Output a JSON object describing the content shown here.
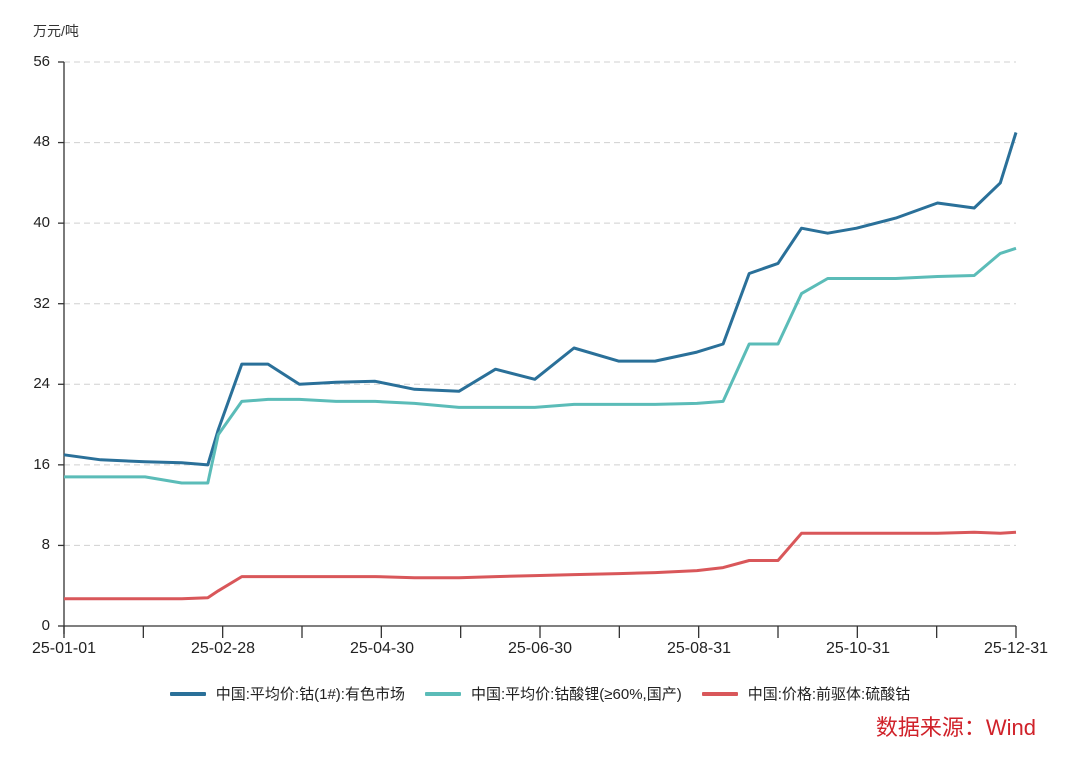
{
  "chart_data": {
    "type": "line",
    "title": "",
    "ylabel": "万元/吨",
    "xlabel": "",
    "ylim": [
      0,
      56
    ],
    "yticks": [
      0,
      8,
      16,
      24,
      32,
      40,
      48,
      56
    ],
    "xtick_labels": [
      "25-01-01",
      "25-02-28",
      "25-04-30",
      "25-06-30",
      "25-08-31",
      "25-10-31",
      "25-12-31"
    ],
    "grid": "horizontal dashed",
    "legend_position": "bottom",
    "x": [
      "25-01-01",
      "25-01-15",
      "25-02-01",
      "25-02-15",
      "25-02-25",
      "25-03-01",
      "25-03-10",
      "25-03-20",
      "25-04-01",
      "25-04-15",
      "25-04-30",
      "25-05-15",
      "25-06-01",
      "25-06-15",
      "25-06-30",
      "25-07-15",
      "25-08-01",
      "25-08-15",
      "25-08-31",
      "25-09-10",
      "25-09-20",
      "25-10-01",
      "25-10-10",
      "25-10-20",
      "25-10-31",
      "25-11-15",
      "25-12-01",
      "25-12-15",
      "25-12-25",
      "25-12-31"
    ],
    "series": [
      {
        "name": "中国:平均价:钴(1#):有色市场",
        "color": "#2a7099",
        "values": [
          17.0,
          16.5,
          16.3,
          16.2,
          16.0,
          19.5,
          26.0,
          26.0,
          24.0,
          24.2,
          24.3,
          23.5,
          23.3,
          25.5,
          24.5,
          27.6,
          26.3,
          26.3,
          27.2,
          28.0,
          35.0,
          36.0,
          39.5,
          39.0,
          39.5,
          40.5,
          42.0,
          41.5,
          44.0,
          49.0
        ]
      },
      {
        "name": "中国:平均价:钴酸锂(≥60%,国产)",
        "color": "#5bbcb8",
        "values": [
          14.8,
          14.8,
          14.8,
          14.2,
          14.2,
          19.0,
          22.3,
          22.5,
          22.5,
          22.3,
          22.3,
          22.1,
          21.7,
          21.7,
          21.7,
          22.0,
          22.0,
          22.0,
          22.1,
          22.3,
          28.0,
          28.0,
          33.0,
          34.5,
          34.5,
          34.5,
          34.7,
          34.8,
          37.0,
          37.5
        ]
      },
      {
        "name": "中国:价格:前驱体:硫酸钴",
        "color": "#d9575a",
        "values": [
          2.7,
          2.7,
          2.7,
          2.7,
          2.8,
          3.5,
          4.9,
          4.9,
          4.9,
          4.9,
          4.9,
          4.8,
          4.8,
          4.9,
          5.0,
          5.1,
          5.2,
          5.3,
          5.5,
          5.8,
          6.5,
          6.5,
          9.2,
          9.2,
          9.2,
          9.2,
          9.2,
          9.3,
          9.2,
          9.3
        ]
      }
    ]
  },
  "axis": {
    "unit": "万元/吨",
    "y_labels": [
      "0",
      "8",
      "16",
      "24",
      "32",
      "40",
      "48",
      "56"
    ],
    "x_labels": [
      "25-01-01",
      "25-02-28",
      "25-04-30",
      "25-06-30",
      "25-08-31",
      "25-10-31",
      "25-12-31"
    ]
  },
  "legend": [
    {
      "label": "中国:平均价:钴(1#):有色市场",
      "color": "#2a7099"
    },
    {
      "label": "中国:平均价:钴酸锂(≥60%,国产)",
      "color": "#5bbcb8"
    },
    {
      "label": "中国:价格:前驱体:硫酸钴",
      "color": "#d9575a"
    }
  ],
  "source": "数据来源：Wind"
}
